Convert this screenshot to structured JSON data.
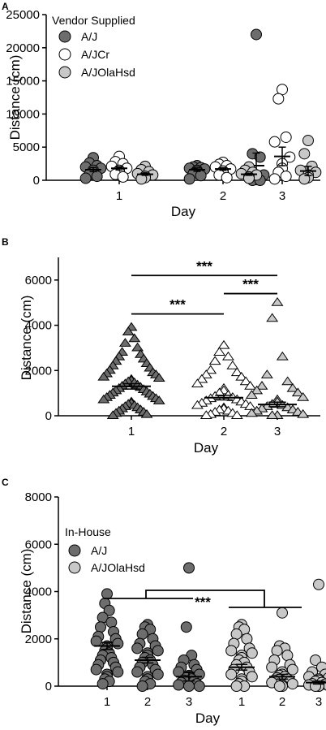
{
  "colors": {
    "aj": "#6d6d6d",
    "ajcr": "#ffffff",
    "ajolahsd": "#c8c8c8",
    "outline": "#000000"
  },
  "chart_data": [
    {
      "panel": "A",
      "type": "scatter",
      "ylabel": "Distance (cm)",
      "xlabel": "Day",
      "ylim": [
        0,
        25000
      ],
      "yticks": [
        0,
        5000,
        10000,
        15000,
        20000,
        25000
      ],
      "categories": [
        "1",
        "2",
        "3"
      ],
      "legend_title": "Vendor Supplied",
      "legend": [
        {
          "name": "A/J",
          "color": "#6d6d6d"
        },
        {
          "name": "A/JCr",
          "color": "#ffffff"
        },
        {
          "name": "A/JOlaHsd",
          "color": "#c8c8c8"
        }
      ],
      "series": [
        {
          "name": "A/J",
          "color": "#6d6d6d",
          "groups": [
            {
              "x": "1",
              "mean": 1600,
              "sem": 300,
              "values": [
                3400,
                2600,
                2200,
                2000,
                1800,
                1500,
                1200,
                900,
                600,
                300
              ]
            },
            {
              "x": "2",
              "mean": 1600,
              "sem": 250,
              "values": [
                2200,
                2000,
                1900,
                1800,
                1700,
                1500,
                1300,
                1000,
                700,
                200
              ]
            },
            {
              "x": "3",
              "mean": 2200,
              "sem": 1900,
              "values": [
                22000,
                4000,
                3500,
                1500,
                800,
                300,
                100,
                0,
                0
              ]
            }
          ]
        },
        {
          "name": "A/JCr",
          "color": "#ffffff",
          "groups": [
            {
              "x": "1",
              "mean": 1800,
              "sem": 250,
              "values": [
                3600,
                2800,
                2500,
                2100,
                1800,
                1500,
                1200,
                900,
                500
              ]
            },
            {
              "x": "2",
              "mean": 1700,
              "sem": 200,
              "values": [
                2700,
                2400,
                2200,
                2000,
                1700,
                1400,
                1100,
                800,
                400
              ]
            },
            {
              "x": "3",
              "mean": 3600,
              "sem": 1400,
              "values": [
                13700,
                12300,
                6500,
                5800,
                3500,
                2500,
                1800,
                1200,
                600,
                200
              ]
            }
          ]
        },
        {
          "name": "A/JOlaHsd",
          "color": "#c8c8c8",
          "groups": [
            {
              "x": "1",
              "mean": 900,
              "sem": 150,
              "values": [
                2100,
                1600,
                1300,
                1000,
                800,
                600,
                400,
                200
              ]
            },
            {
              "x": "2",
              "mean": 900,
              "sem": 150,
              "values": [
                2000,
                1500,
                1200,
                1000,
                800,
                500,
                300
              ]
            },
            {
              "x": "3",
              "mean": 1400,
              "sem": 700,
              "values": [
                6000,
                4000,
                2100,
                1500,
                1200,
                800,
                400,
                200
              ]
            }
          ]
        }
      ]
    },
    {
      "panel": "B",
      "type": "scatter",
      "ylabel": "Distance (cm)",
      "xlabel": "Day",
      "ylim": [
        0,
        7000
      ],
      "yticks": [
        0,
        2000,
        4000,
        6000
      ],
      "categories": [
        "1",
        "2",
        "3"
      ],
      "series": [
        {
          "name": "",
          "marker": "triangle",
          "groups": [
            {
              "x": "1",
              "color": "#6d6d6d",
              "mean": 1300,
              "sem": 120,
              "values": [
                3900,
                3700,
                3400,
                3200,
                3000,
                2800,
                2700,
                2600,
                2500,
                2400,
                2300,
                2200,
                2100,
                2000,
                1900,
                1850,
                1800,
                1700,
                1650,
                1600,
                1550,
                1500,
                1450,
                1400,
                1350,
                1300,
                1250,
                1200,
                1150,
                1100,
                1050,
                1000,
                950,
                900,
                850,
                800,
                750,
                700,
                650,
                600,
                550,
                500,
                450,
                400,
                350,
                300,
                250,
                200,
                150,
                100,
                50,
                0
              ]
            },
            {
              "x": "2",
              "color": "#ffffff",
              "mean": 800,
              "sem": 100,
              "values": [
                3100,
                2800,
                2600,
                2400,
                2200,
                2000,
                1900,
                1800,
                1700,
                1600,
                1500,
                1400,
                1300,
                1200,
                1100,
                1000,
                900,
                850,
                800,
                750,
                700,
                650,
                600,
                550,
                500,
                450,
                400,
                350,
                300,
                250,
                200,
                150,
                100,
                50,
                0,
                0
              ]
            },
            {
              "x": "3",
              "color": "#c8c8c8",
              "mean": 500,
              "sem": 100,
              "values": [
                5000,
                4300,
                2600,
                1800,
                1500,
                1300,
                1200,
                1100,
                1000,
                900,
                800,
                700,
                600,
                500,
                450,
                400,
                350,
                300,
                250,
                200,
                150,
                100,
                50,
                0,
                0,
                0
              ]
            }
          ]
        }
      ],
      "annotations": [
        {
          "text": "***",
          "from": "1",
          "to": "3",
          "y": 6200
        },
        {
          "text": "***",
          "from": "1",
          "to": "2",
          "y": 4500
        },
        {
          "text": "***",
          "from": "2",
          "to": "3",
          "y": 5400
        }
      ]
    },
    {
      "panel": "C",
      "type": "scatter",
      "ylabel": "Distance (cm)",
      "xlabel": "Day",
      "ylim": [
        0,
        8000
      ],
      "yticks": [
        0,
        2000,
        4000,
        6000,
        8000
      ],
      "categories": [
        "1",
        "2",
        "3",
        "1",
        "2",
        "3"
      ],
      "legend_title": "In-House",
      "legend": [
        {
          "name": "A/J",
          "color": "#6d6d6d"
        },
        {
          "name": "A/JOlaHsd",
          "color": "#c8c8c8"
        }
      ],
      "series": [
        {
          "name": "A/J",
          "color": "#6d6d6d",
          "groups": [
            {
              "x": 1,
              "mean": 1700,
              "sem": 150,
              "values": [
                3900,
                3500,
                3200,
                2900,
                2700,
                2500,
                2300,
                2100,
                2000,
                1900,
                1800,
                1700,
                1600,
                1500,
                1400,
                1300,
                1200,
                1100,
                1000,
                900,
                800,
                700,
                600,
                500,
                400,
                300,
                200,
                100
              ]
            },
            {
              "x": 2,
              "mean": 1100,
              "sem": 120,
              "values": [
                2600,
                2500,
                2400,
                2200,
                2000,
                1800,
                1700,
                1600,
                1500,
                1400,
                1300,
                1200,
                1100,
                1000,
                900,
                800,
                700,
                600,
                500,
                400,
                300,
                200,
                100,
                0
              ]
            },
            {
              "x": 3,
              "mean": 400,
              "sem": 180,
              "values": [
                5000,
                2500,
                1300,
                1100,
                900,
                800,
                700,
                600,
                500,
                450,
                400,
                350,
                300,
                250,
                200,
                150,
                100,
                50,
                0,
                0
              ]
            }
          ]
        },
        {
          "name": "A/JOlaHsd",
          "color": "#c8c8c8",
          "groups": [
            {
              "x": 4,
              "mean": 800,
              "sem": 120,
              "values": [
                2600,
                2500,
                2400,
                2200,
                2000,
                1800,
                1600,
                1500,
                1400,
                1300,
                1200,
                1100,
                1000,
                900,
                800,
                700,
                600,
                500,
                400,
                300,
                200,
                100,
                0,
                0
              ]
            },
            {
              "x": 5,
              "mean": 400,
              "sem": 100,
              "values": [
                3100,
                1700,
                1600,
                1500,
                1300,
                1100,
                900,
                800,
                700,
                600,
                500,
                450,
                400,
                350,
                300,
                250,
                200,
                150,
                100,
                50,
                0,
                0
              ]
            },
            {
              "x": 6,
              "mean": 150,
              "sem": 60,
              "values": [
                4300,
                1100,
                800,
                600,
                500,
                400,
                350,
                300,
                250,
                200,
                150,
                100,
                80,
                50,
                30,
                0,
                0,
                0
              ]
            }
          ]
        }
      ],
      "annotations": [
        {
          "text": "***",
          "between": [
            "A/J",
            "A/JOlaHsd"
          ]
        }
      ]
    }
  ]
}
